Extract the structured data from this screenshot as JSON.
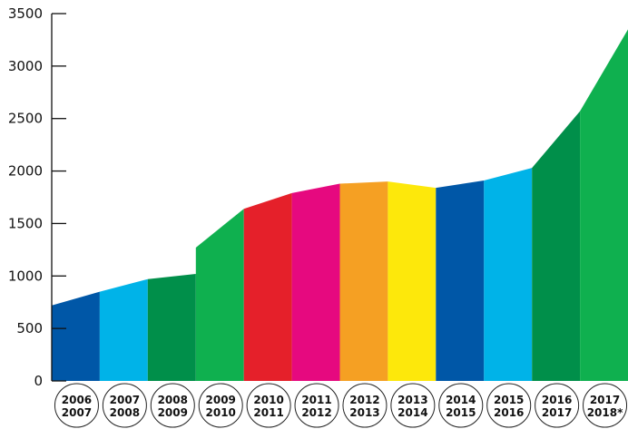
{
  "chart_data": {
    "type": "area",
    "title": "",
    "xlabel": "",
    "ylabel": "",
    "ylim": [
      0,
      3500
    ],
    "yticks": [
      "0",
      "500",
      "1000",
      "1500",
      "2000",
      "2500",
      "3000",
      "3500"
    ],
    "grid": false,
    "legend": "none",
    "categories": [
      {
        "top": "2006",
        "bottom": "2007"
      },
      {
        "top": "2007",
        "bottom": "2008"
      },
      {
        "top": "2008",
        "bottom": "2009"
      },
      {
        "top": "2009",
        "bottom": "2010"
      },
      {
        "top": "2010",
        "bottom": "2011"
      },
      {
        "top": "2011",
        "bottom": "2012"
      },
      {
        "top": "2012",
        "bottom": "2013"
      },
      {
        "top": "2013",
        "bottom": "2014"
      },
      {
        "top": "2014",
        "bottom": "2015"
      },
      {
        "top": "2015",
        "bottom": "2016"
      },
      {
        "top": "2016",
        "bottom": "2017"
      },
      {
        "top": "2017",
        "bottom": "2018*"
      }
    ],
    "values": [
      [
        720,
        850
      ],
      [
        850,
        970
      ],
      [
        970,
        1020
      ],
      [
        1270,
        1640
      ],
      [
        1640,
        1790
      ],
      [
        1790,
        1880
      ],
      [
        1880,
        1900
      ],
      [
        1900,
        1840
      ],
      [
        1840,
        1910
      ],
      [
        1910,
        2030
      ],
      [
        2030,
        2570
      ],
      [
        2570,
        3350
      ]
    ],
    "colors": [
      "#0057a7",
      "#00b3e8",
      "#008f4a",
      "#0fb04f",
      "#e5202a",
      "#e6097f",
      "#f5a023",
      "#fde80b",
      "#0057a7",
      "#00b3e8",
      "#008f4a",
      "#0fb04f"
    ]
  }
}
